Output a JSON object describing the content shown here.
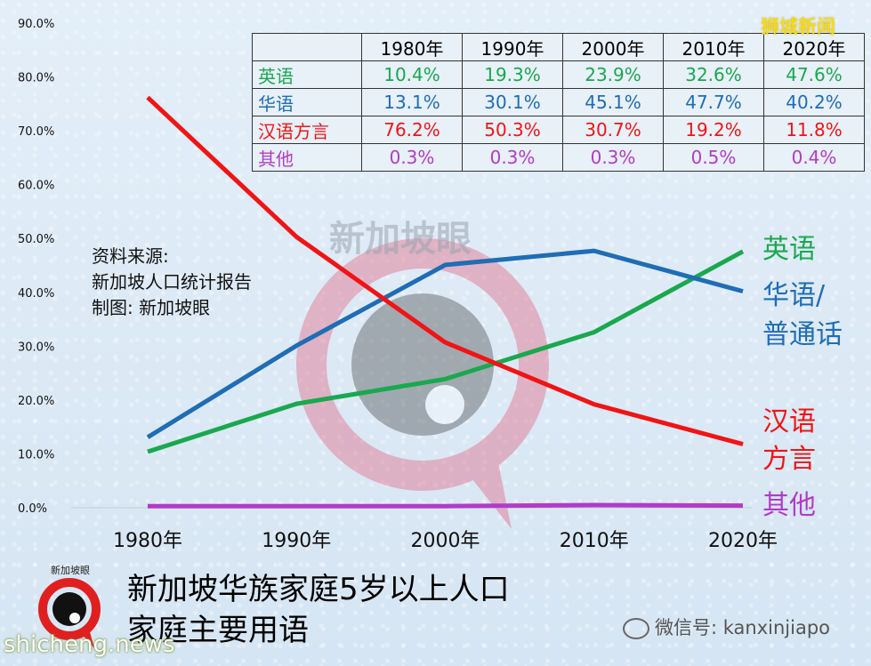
{
  "chart_data": {
    "type": "line",
    "categories": [
      "1980年",
      "1990年",
      "2000年",
      "2010年",
      "2020年"
    ],
    "x": [
      1980,
      1990,
      2000,
      2010,
      2020
    ],
    "ylim": [
      0,
      90
    ],
    "yticks": [
      "0.0%",
      "10.0%",
      "20.0%",
      "30.0%",
      "40.0%",
      "50.0%",
      "60.0%",
      "70.0%",
      "80.0%",
      "90.0%"
    ],
    "grid": false,
    "series": [
      {
        "name": "英语",
        "label_lines": [
          "英语"
        ],
        "color": "#1aa84f",
        "values": [
          10.4,
          19.3,
          23.9,
          32.6,
          47.6
        ]
      },
      {
        "name": "华语",
        "label_lines": [
          "华语/",
          "普通话"
        ],
        "color": "#1f6db5",
        "values": [
          13.1,
          30.1,
          45.1,
          47.7,
          40.2
        ]
      },
      {
        "name": "汉语方言",
        "label_lines": [
          "汉语",
          "方言"
        ],
        "color": "#f01414",
        "values": [
          76.2,
          50.3,
          30.7,
          19.2,
          11.8
        ]
      },
      {
        "name": "其他",
        "label_lines": [
          "其他"
        ],
        "color": "#b03cc8",
        "values": [
          0.3,
          0.3,
          0.3,
          0.5,
          0.4
        ]
      }
    ],
    "title": "新加坡华族家庭5岁以上人口家庭主要用语"
  },
  "table": {
    "headers": [
      "1980年",
      "1990年",
      "2000年",
      "2010年",
      "2020年"
    ],
    "rows": [
      {
        "name": "英语",
        "color": "#1aa84f",
        "cells": [
          "10.4%",
          "19.3%",
          "23.9%",
          "32.6%",
          "47.6%"
        ]
      },
      {
        "name": "华语",
        "color": "#1f6db5",
        "cells": [
          "13.1%",
          "30.1%",
          "45.1%",
          "47.7%",
          "40.2%"
        ]
      },
      {
        "name": "汉语方言",
        "color": "#f01414",
        "cells": [
          "76.2%",
          "50.3%",
          "30.7%",
          "19.2%",
          "11.8%"
        ]
      },
      {
        "name": "其他",
        "color": "#b03cc8",
        "cells": [
          "0.3%",
          "0.3%",
          "0.3%",
          "0.5%",
          "0.4%"
        ]
      }
    ]
  },
  "source": {
    "line1": "资料来源:",
    "line2": "新加坡人口统计报告",
    "line3": "制图:  新加坡眼"
  },
  "title": {
    "line1": "新加坡华族家庭5岁以上人口",
    "line2": "家庭主要用语"
  },
  "watermark": {
    "text": "新加坡眼",
    "brand_top": "狮城新闻",
    "wechat": "微信号: kanxinjiapo",
    "site": "shicheng.news",
    "logo_text": "新加坡眼"
  }
}
